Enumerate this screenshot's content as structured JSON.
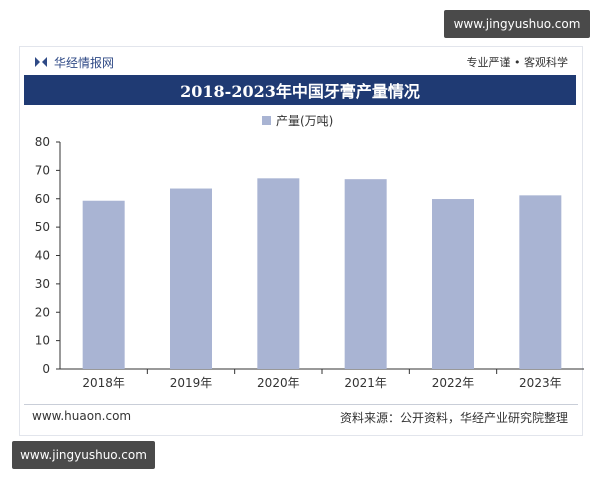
{
  "watermarks": {
    "top": "www.jingyushuo.com",
    "bottom": "www.jingyushuo.com"
  },
  "header": {
    "brand": "华经情报网",
    "slogan": "专业严谨 • 客观科学",
    "logo_icon": "huajing-logo-icon"
  },
  "footer": {
    "site": "www.huaon.com",
    "source": "资料来源：公开资料，华经产业研究院整理"
  },
  "colors": {
    "bar": "#a9b4d3",
    "title_band": "#1f3a73",
    "axis": "#333333"
  },
  "chart_data": {
    "type": "bar",
    "title": "2018-2023年中国牙膏产量情况",
    "categories": [
      "2018年",
      "2019年",
      "2020年",
      "2021年",
      "2022年",
      "2023年"
    ],
    "series": [
      {
        "name": "产量(万吨)",
        "values": [
          59.3,
          63.6,
          67.2,
          66.9,
          59.9,
          61.2
        ]
      }
    ],
    "ylim": [
      0,
      80
    ],
    "yticks": [
      "0",
      "10",
      "20",
      "30",
      "40",
      "50",
      "60",
      "70",
      "80"
    ],
    "legend_position": "top-center",
    "grid": false
  }
}
